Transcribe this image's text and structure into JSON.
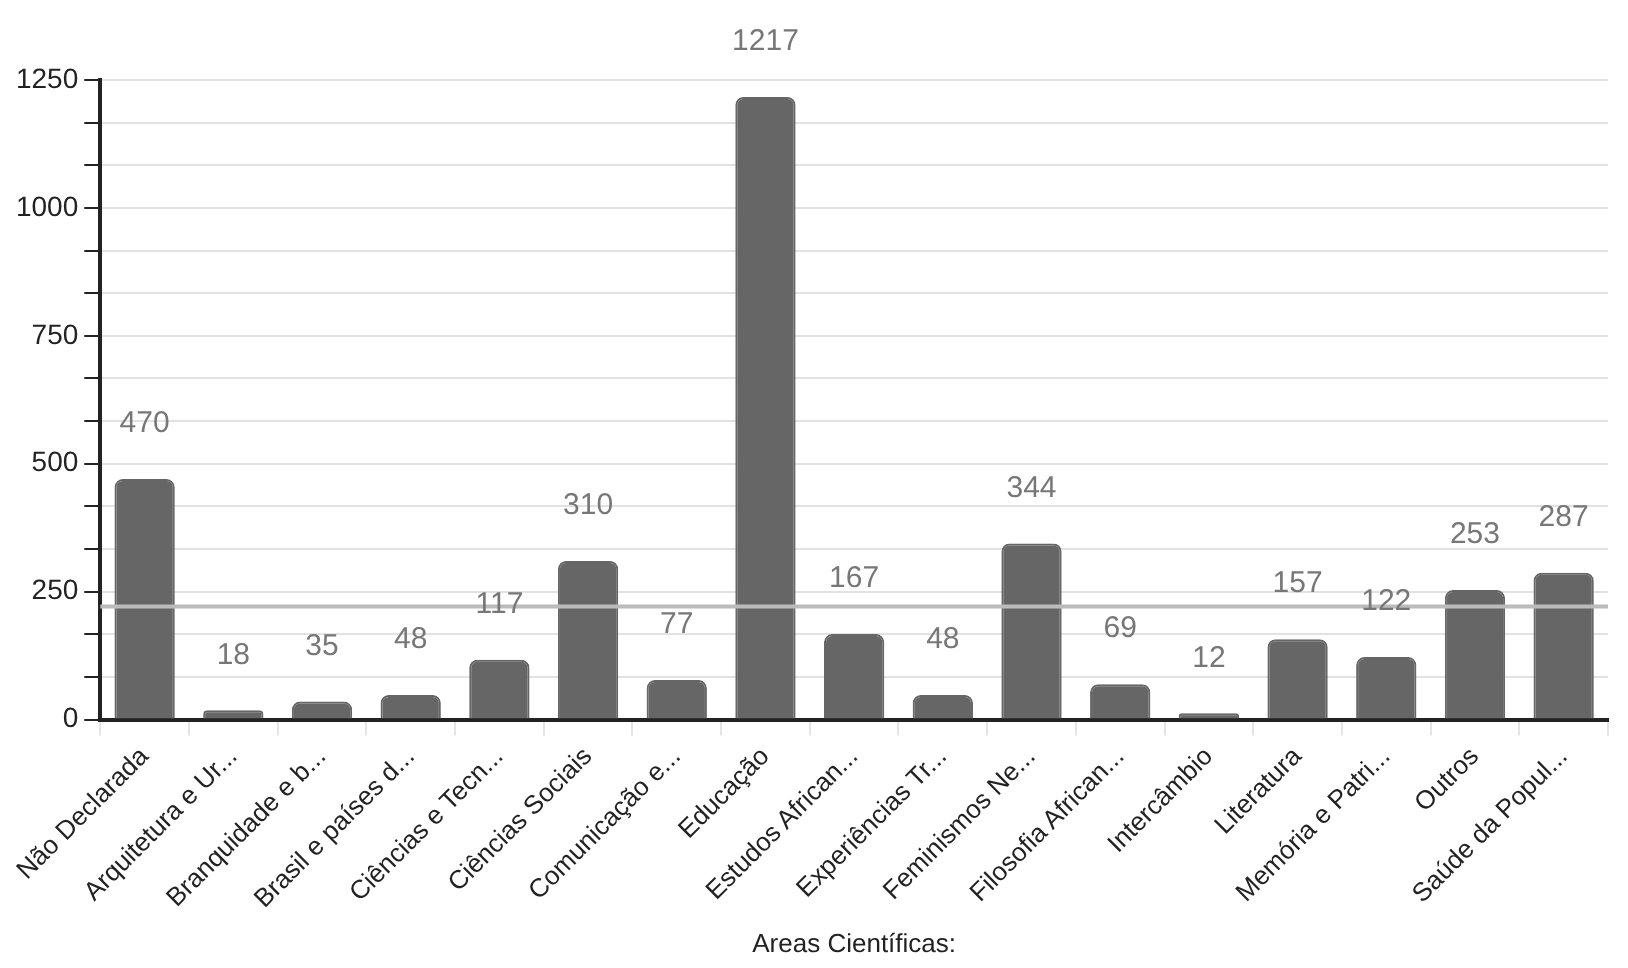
{
  "chart_data": {
    "type": "bar",
    "xlabel": "Areas Científicas:",
    "categories": [
      "Não Declarada",
      "Arquitetura e Ur...",
      "Branquidade e b...",
      "Brasil e países d...",
      "Ciências e Tecn...",
      "Ciências Sociais",
      "Comunicação e...",
      "Educação",
      "Estudos African...",
      "Experiências Tr...",
      "Feminismos Ne...",
      "Filosofia African...",
      "Intercâmbio",
      "Literatura",
      "Memória e Patri...",
      "Outros",
      "Saúde da Popul..."
    ],
    "values": [
      470,
      18,
      35,
      48,
      117,
      310,
      77,
      1217,
      167,
      48,
      344,
      69,
      12,
      157,
      122,
      253,
      287
    ],
    "color": "#666666",
    "data_labels": true,
    "ylim": [
      0,
      1250
    ],
    "yticks": [
      0,
      {
        "value": 83.3,
        "label": null
      },
      {
        "value": 166.7,
        "label": null
      },
      250,
      {
        "value": 333.3,
        "label": null
      },
      {
        "value": 416.7,
        "label": null
      },
      500,
      {
        "value": 583.3,
        "label": null
      },
      {
        "value": 666.7,
        "label": null
      },
      750,
      {
        "value": 833.3,
        "label": null
      },
      {
        "value": 916.7,
        "label": null
      },
      1000,
      {
        "value": 1083.3,
        "label": null
      },
      {
        "value": 1166.7,
        "label": null
      },
      1250
    ],
    "grid": true,
    "legend": false,
    "ref_lines": [
      {
        "axis": "y",
        "value": 221,
        "color": "#bbbbbb"
      }
    ]
  }
}
